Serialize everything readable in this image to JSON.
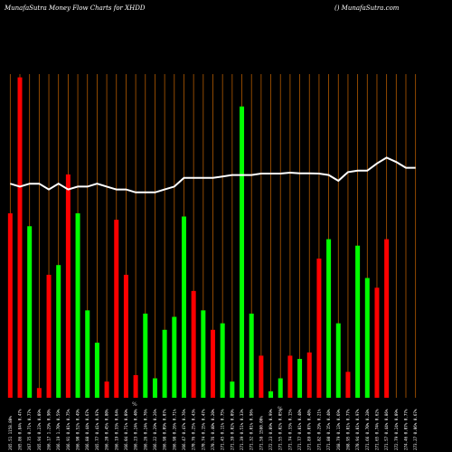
{
  "header": {
    "title": "MunafaSutra  Money Flow  Charts for XHDD",
    "site": "() MunafaSutra.com"
  },
  "colors": {
    "background": "#000000",
    "gridline": "#b35a00",
    "up_bar": "#00ff00",
    "down_bar": "#ff0000",
    "price_line": "#ffffff"
  },
  "chart_data": {
    "type": "bar",
    "title": "MunafaSutra  Money Flow  Charts for XHDD",
    "xlabel": "",
    "ylabel": "",
    "grid": true,
    "categories": [
      "265.51 1158.80%",
      "265.86 0.84% 0.47%",
      "267.75 0.71% 0.77%",
      "265.94 0.23% 0.09%",
      "266.17 1.29% 0.90%",
      "266.19 1.70% 0.59%",
      "266.91 0.01% 0.75%",
      "266.90 0.52% 0.49%",
      "266.88 0.44% 0.67%",
      "265.77 0.41% 0.97%",
      "266.20 0.45% 0.80%",
      "266.19 0.33% 0.64%",
      "266.04 0.71% 0.09%",
      "266.23 0.24% 0.40%",
      "266.26 0.24% 0.76%",
      "266.22 0.29% 0.26%",
      "266.98 0.09% 0.07%",
      "266.98 0.26% 0.71%",
      "266.47 0.47% 0.76%",
      "270.76 0.25% 0.43%",
      "270.74 0.15% 0.47%",
      "270.76 0.40% 0.20%",
      "271.45 0.11% 0.75%",
      "271.39 0.02% 0.09%",
      "271.39 0.51% 0.33%",
      "271.32 0.01% 0.96%",
      "271.58 1580.00%",
      "272.23 0.09% 0.99%",
      "271.55 0.02% 0.05%",
      "271.74 0.33% 0.15%",
      "271.77 0.01% 0.40%",
      "271.89 0.07% 0.40%",
      "271.82 0.29% 0.21%",
      "271.80 0.15% 0.40%",
      "268.79 0.13% 0.69%",
      "268.95 0.01% 0.77%",
      "270.94 0.01% 0.97%",
      "271.66 0.70% 0.28%",
      "271.65 0.74% 0.62%",
      "271.57 0.44% 0.86%",
      "272.79 0.24% 0.09%",
      "274.46 0.07% 0.77%",
      "273.27 0.06% 0.67%"
    ],
    "series": [
      {
        "values": [
          0.57,
          0.99,
          0.53,
          0.03,
          0.38,
          0.41,
          0.69,
          0.57,
          0.27,
          0.17,
          0.05,
          0.55,
          0.38,
          0.07,
          0.26,
          0.06,
          0.21,
          0.25,
          0.56,
          0.33,
          0.27,
          0.21,
          0.23,
          0.05,
          0.9,
          0.26,
          0.13,
          0.02,
          0.06,
          0.13,
          0.12,
          0.14,
          0.43,
          0.49,
          0.23,
          0.08,
          0.47,
          0.37,
          0.34,
          0.49,
          0.0,
          0.0,
          0.0
        ],
        "colors": [
          "red",
          "red",
          "green",
          "red",
          "red",
          "green",
          "red",
          "green",
          "green",
          "green",
          "red",
          "red",
          "red",
          "red",
          "green",
          "green",
          "green",
          "green",
          "green",
          "red",
          "green",
          "red",
          "green",
          "green",
          "green",
          "green",
          "red",
          "green",
          "green",
          "red",
          "green",
          "red",
          "red",
          "green",
          "green",
          "red",
          "green",
          "green",
          "red",
          "red",
          "green",
          "green",
          "red"
        ]
      },
      {
        "values": [
          0.74,
          0.73,
          0.74,
          0.74,
          0.72,
          0.74,
          0.72,
          0.73,
          0.73,
          0.74,
          0.73,
          0.72,
          0.72,
          0.71,
          0.71,
          0.71,
          0.72,
          0.73,
          0.76,
          0.76,
          0.76,
          0.76,
          0.765,
          0.77,
          0.77,
          0.77,
          0.775,
          0.775,
          0.775,
          0.778,
          0.776,
          0.776,
          0.775,
          0.77,
          0.75,
          0.78,
          0.785,
          0.785,
          0.81,
          0.83,
          0.815,
          0.795,
          0.795
        ]
      }
    ],
    "mid_markers": [
      "%",
      "%"
    ],
    "ylim": [
      0,
      1
    ]
  }
}
